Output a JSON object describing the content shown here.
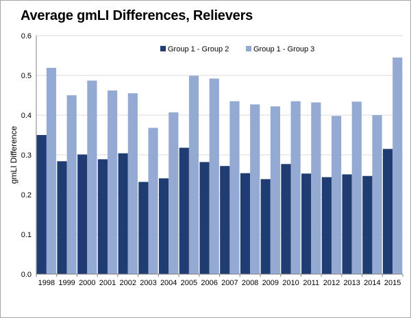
{
  "chart_data": {
    "type": "bar",
    "title": "Average gmLI Differences, Relievers",
    "xlabel": "",
    "ylabel": "gmLI Difference",
    "ylim": [
      0,
      0.6
    ],
    "yticks": [
      "0.0",
      "0.1",
      "0.2",
      "0.3",
      "0.4",
      "0.5",
      "0.6"
    ],
    "grid": true,
    "legend_position": "top-center",
    "categories": [
      "1998",
      "1999",
      "2000",
      "2001",
      "2002",
      "2003",
      "2004",
      "2005",
      "2006",
      "2007",
      "2008",
      "2009",
      "2010",
      "2011",
      "2012",
      "2013",
      "2014",
      "2015"
    ],
    "series": [
      {
        "name": "Group 1 - Group 2",
        "color": "#1f3d73",
        "values": [
          0.35,
          0.284,
          0.301,
          0.289,
          0.304,
          0.232,
          0.241,
          0.318,
          0.282,
          0.272,
          0.254,
          0.239,
          0.277,
          0.253,
          0.244,
          0.251,
          0.247,
          0.315
        ]
      },
      {
        "name": "Group 1 - Group 3",
        "color": "#95aad3",
        "values": [
          0.519,
          0.45,
          0.487,
          0.462,
          0.455,
          0.368,
          0.407,
          0.499,
          0.492,
          0.435,
          0.427,
          0.422,
          0.435,
          0.432,
          0.398,
          0.434,
          0.4,
          0.545
        ]
      }
    ]
  }
}
